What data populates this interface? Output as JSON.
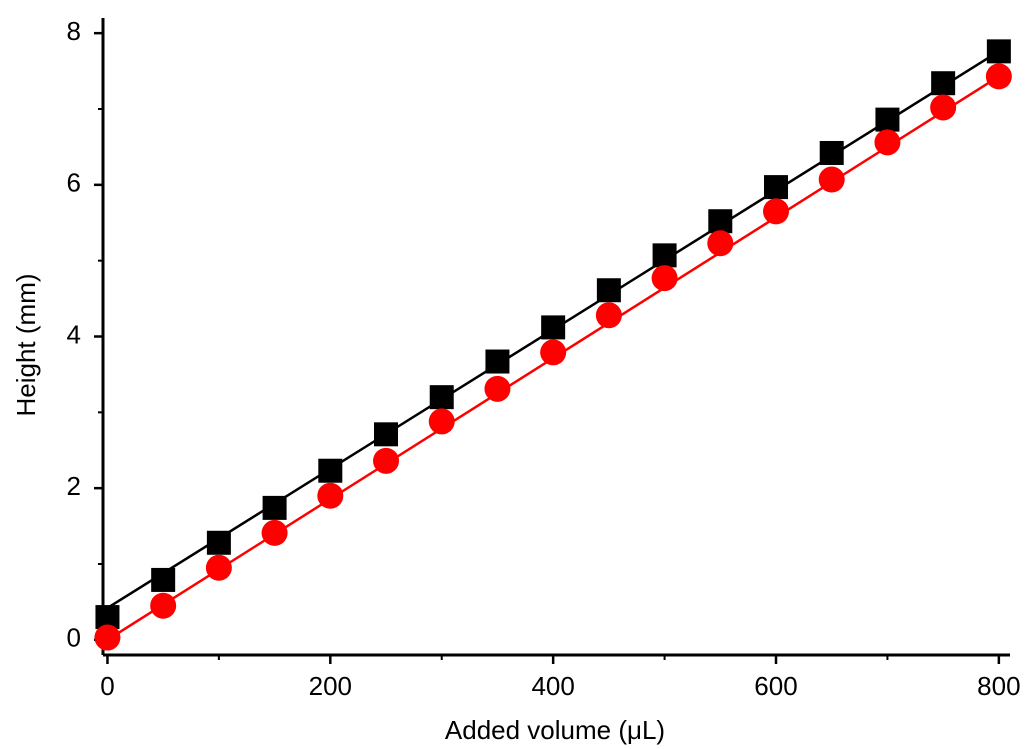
{
  "chart_data": {
    "type": "scatter",
    "x_label": "Added volume (μL)",
    "y_label": "Height (mm)",
    "x": [
      0,
      50,
      100,
      150,
      200,
      250,
      300,
      350,
      400,
      450,
      500,
      550,
      600,
      650,
      700,
      750,
      800
    ],
    "series": [
      {
        "color": "#000000",
        "marker": "square",
        "values": [
          0.3,
          0.79,
          1.28,
          1.74,
          2.23,
          2.71,
          3.2,
          3.67,
          4.12,
          4.61,
          5.07,
          5.52,
          5.97,
          6.42,
          6.86,
          7.34,
          7.76
        ],
        "fit": {
          "x": [
            0,
            800
          ],
          "values": [
            0.42,
            7.76
          ]
        }
      },
      {
        "color": "#ff0000",
        "marker": "circle",
        "values": [
          0.03,
          0.45,
          0.95,
          1.41,
          1.9,
          2.36,
          2.88,
          3.31,
          3.79,
          4.28,
          4.77,
          5.23,
          5.65,
          6.07,
          6.56,
          7.02,
          7.43
        ],
        "fit": {
          "x": [
            0,
            800
          ],
          "values": [
            0.0,
            7.43
          ]
        }
      }
    ],
    "xlim": [
      -4,
      810
    ],
    "ylim": [
      -0.2,
      8.2
    ],
    "xticks": [
      0,
      200,
      400,
      600,
      800
    ],
    "xminorticks": [
      100,
      300,
      500,
      700
    ],
    "yticks": [
      0,
      2,
      4,
      6,
      8
    ],
    "yminorticks": [
      1,
      3,
      5,
      7
    ]
  }
}
